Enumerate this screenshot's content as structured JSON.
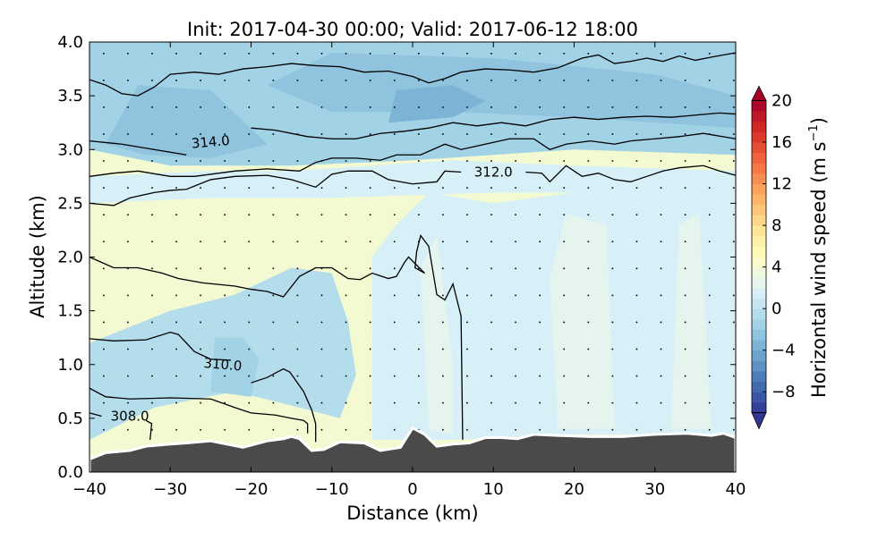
{
  "chart_data": {
    "type": "heatmap",
    "title": "Init: 2017-04-30 00:00; Valid: 2017-06-12 18:00",
    "xlabel": "Distance (km)",
    "ylabel": "Altitude (km)",
    "xlim": [
      -40,
      40
    ],
    "ylim": [
      0,
      4
    ],
    "xticks": [
      "−40",
      "−30",
      "−20",
      "−10",
      "0",
      "10",
      "20",
      "30",
      "40"
    ],
    "xtick_values": [
      -40,
      -30,
      -20,
      -10,
      0,
      10,
      20,
      30,
      40
    ],
    "yticks": [
      "0.0",
      "0.5",
      "1.0",
      "1.5",
      "2.0",
      "2.5",
      "3.0",
      "3.5",
      "4.0"
    ],
    "ytick_values": [
      0,
      0.5,
      1,
      1.5,
      2,
      2.5,
      3,
      3.5,
      4
    ],
    "colorbar": {
      "label": "Horizontal wind speed (m s",
      "label_sup": "−1",
      "label_close": ")",
      "range": [
        -10,
        20
      ],
      "step": 1,
      "extend": "both",
      "colormap": "RdYlBu_r",
      "ticks": [
        "20",
        "16",
        "12",
        "8",
        "4",
        "0",
        "−4",
        "−8"
      ],
      "tick_values": [
        20,
        16,
        12,
        8,
        4,
        0,
        -4,
        -8
      ]
    },
    "contour_labels": [
      {
        "text": "314.0",
        "x": -25,
        "y": 3.07
      },
      {
        "text": "312.0",
        "x": 10,
        "y": 2.79
      },
      {
        "text": "310.0",
        "x": -23.5,
        "y": 1.0
      },
      {
        "text": "308.0",
        "x": -35,
        "y": 0.52
      }
    ],
    "contours": [
      [
        [
          -40,
          0.55
        ],
        [
          -38.5,
          0.52
        ]
      ],
      [
        [
          -33,
          0.48
        ],
        [
          -32.3,
          0.45
        ],
        [
          -32.5,
          0.3
        ]
      ],
      [
        [
          -40,
          0.78
        ],
        [
          -38,
          0.7
        ],
        [
          -35,
          0.68
        ],
        [
          -30,
          0.69
        ],
        [
          -25,
          0.68
        ],
        [
          -22,
          0.6
        ],
        [
          -20,
          0.55
        ],
        [
          -17,
          0.53
        ],
        [
          -15,
          0.5
        ],
        [
          -13.5,
          0.48
        ],
        [
          -13,
          0.45
        ],
        [
          -13,
          0.36
        ]
      ],
      [
        [
          -40,
          1.24
        ],
        [
          -37,
          1.22
        ],
        [
          -33,
          1.23
        ],
        [
          -30,
          1.3
        ],
        [
          -29,
          1.28
        ],
        [
          -27,
          1.12
        ],
        [
          -25,
          1.05
        ],
        [
          -22.5,
          1.04
        ]
      ],
      [
        [
          -20,
          0.83
        ],
        [
          -18,
          0.88
        ],
        [
          -16,
          0.96
        ],
        [
          -15.2,
          0.93
        ],
        [
          -13.5,
          0.75
        ],
        [
          -12.5,
          0.58
        ],
        [
          -12,
          0.45
        ],
        [
          -12,
          0.28
        ]
      ],
      [
        [
          -40,
          2.0
        ],
        [
          -37,
          1.9
        ],
        [
          -34,
          1.9
        ],
        [
          -31,
          1.85
        ],
        [
          -29,
          1.8
        ],
        [
          -26,
          1.76
        ],
        [
          -22,
          1.73
        ],
        [
          -20,
          1.7
        ],
        [
          -18,
          1.68
        ],
        [
          -16,
          1.63
        ],
        [
          -14,
          1.82
        ],
        [
          -12,
          1.9
        ],
        [
          -10,
          1.9
        ],
        [
          -8,
          1.8
        ],
        [
          -6.5,
          1.79
        ],
        [
          -5,
          1.85
        ],
        [
          -3,
          1.8
        ],
        [
          -2,
          1.82
        ],
        [
          -1,
          1.95
        ],
        [
          -0.5,
          2.0
        ],
        [
          1.5,
          1.85
        ],
        [
          0.3,
          1.9
        ],
        [
          0.5,
          2.05
        ],
        [
          1,
          2.2
        ],
        [
          2,
          2.1
        ],
        [
          3,
          1.65
        ],
        [
          4,
          1.6
        ],
        [
          5,
          1.75
        ],
        [
          6,
          1.45
        ],
        [
          6.2,
          0.3
        ]
      ],
      [
        [
          -40,
          2.5
        ],
        [
          -37,
          2.48
        ],
        [
          -35,
          2.55
        ],
        [
          -32,
          2.6
        ],
        [
          -30,
          2.62
        ],
        [
          -28,
          2.63
        ],
        [
          -25,
          2.72
        ],
        [
          -22,
          2.75
        ],
        [
          -18,
          2.76
        ],
        [
          -15,
          2.72
        ],
        [
          -12,
          2.65
        ],
        [
          -10,
          2.77
        ],
        [
          -8,
          2.8
        ],
        [
          -5,
          2.8
        ],
        [
          -3,
          2.72
        ],
        [
          0,
          2.68
        ],
        [
          3,
          2.7
        ],
        [
          4,
          2.8
        ],
        [
          6,
          2.79
        ]
      ],
      [
        [
          14,
          2.79
        ],
        [
          16,
          2.78
        ],
        [
          17,
          2.7
        ],
        [
          19,
          2.85
        ],
        [
          21,
          2.75
        ],
        [
          23,
          2.78
        ],
        [
          25,
          2.72
        ],
        [
          27,
          2.7
        ],
        [
          29,
          2.75
        ],
        [
          31,
          2.8
        ],
        [
          33,
          2.83
        ],
        [
          36,
          2.85
        ],
        [
          38,
          2.8
        ],
        [
          40,
          2.76
        ]
      ],
      [
        [
          -40,
          2.75
        ],
        [
          -37,
          2.78
        ],
        [
          -34,
          2.8
        ],
        [
          -30,
          2.75
        ],
        [
          -27,
          2.75
        ],
        [
          -22,
          2.8
        ],
        [
          -18,
          2.82
        ],
        [
          -14,
          2.8
        ],
        [
          -12,
          2.88
        ],
        [
          -10,
          2.92
        ],
        [
          -7,
          2.92
        ],
        [
          -4,
          2.9
        ],
        [
          -2,
          2.95
        ],
        [
          1,
          2.95
        ],
        [
          4,
          3.05
        ],
        [
          6,
          3.0
        ],
        [
          9,
          3.05
        ],
        [
          12,
          3.1
        ],
        [
          15,
          3.1
        ],
        [
          17,
          3.0
        ],
        [
          19,
          3.05
        ],
        [
          22,
          3.08
        ],
        [
          25,
          3.05
        ],
        [
          27,
          3.08
        ],
        [
          30,
          3.1
        ],
        [
          33,
          3.12
        ],
        [
          36,
          3.15
        ],
        [
          40,
          3.1
        ]
      ],
      [
        [
          -40,
          3.08
        ],
        [
          -36,
          3.05
        ],
        [
          -32,
          3.0
        ],
        [
          -28,
          2.95
        ]
      ],
      [
        [
          -20,
          3.2
        ],
        [
          -17,
          3.18
        ],
        [
          -13,
          3.12
        ],
        [
          -10,
          3.1
        ],
        [
          -7,
          3.1
        ],
        [
          -4,
          3.15
        ],
        [
          -1,
          3.17
        ],
        [
          2,
          3.2
        ],
        [
          5,
          3.25
        ],
        [
          8,
          3.22
        ],
        [
          11,
          3.25
        ],
        [
          14,
          3.22
        ],
        [
          17,
          3.28
        ],
        [
          20,
          3.3
        ],
        [
          23,
          3.28
        ],
        [
          26,
          3.3
        ],
        [
          29,
          3.31
        ],
        [
          32,
          3.3
        ],
        [
          35,
          3.32
        ],
        [
          38,
          3.34
        ],
        [
          40,
          3.33
        ]
      ],
      [
        [
          -40,
          3.65
        ],
        [
          -38,
          3.6
        ],
        [
          -36,
          3.52
        ],
        [
          -34,
          3.5
        ],
        [
          -32,
          3.58
        ],
        [
          -30,
          3.7
        ],
        [
          -27,
          3.72
        ],
        [
          -24,
          3.7
        ],
        [
          -21,
          3.75
        ],
        [
          -18,
          3.77
        ],
        [
          -15,
          3.8
        ],
        [
          -12,
          3.78
        ],
        [
          -9,
          3.77
        ],
        [
          -6,
          3.72
        ],
        [
          -3,
          3.73
        ],
        [
          0,
          3.68
        ],
        [
          2,
          3.62
        ],
        [
          4,
          3.66
        ],
        [
          6,
          3.72
        ],
        [
          9,
          3.75
        ],
        [
          12,
          3.74
        ],
        [
          15,
          3.72
        ],
        [
          18,
          3.76
        ],
        [
          21,
          3.85
        ],
        [
          23,
          3.88
        ],
        [
          25,
          3.8
        ],
        [
          27,
          3.82
        ],
        [
          29,
          3.85
        ],
        [
          31,
          3.82
        ],
        [
          33,
          3.87
        ],
        [
          35,
          3.83
        ],
        [
          37,
          3.86
        ],
        [
          40,
          3.9
        ]
      ]
    ],
    "terrain": [
      [
        -40,
        0.12
      ],
      [
        -38,
        0.18
      ],
      [
        -35,
        0.2
      ],
      [
        -33,
        0.24
      ],
      [
        -30,
        0.26
      ],
      [
        -28,
        0.27
      ],
      [
        -25,
        0.29
      ],
      [
        -23,
        0.26
      ],
      [
        -21,
        0.23
      ],
      [
        -18,
        0.29
      ],
      [
        -16,
        0.31
      ],
      [
        -15,
        0.33
      ],
      [
        -14,
        0.31
      ],
      [
        -12.5,
        0.2
      ],
      [
        -11,
        0.21
      ],
      [
        -9,
        0.28
      ],
      [
        -6,
        0.27
      ],
      [
        -4,
        0.2
      ],
      [
        -1.5,
        0.23
      ],
      [
        0,
        0.41
      ],
      [
        1.5,
        0.35
      ],
      [
        3,
        0.24
      ],
      [
        5,
        0.26
      ],
      [
        7,
        0.27
      ],
      [
        9,
        0.32
      ],
      [
        11,
        0.32
      ],
      [
        13,
        0.31
      ],
      [
        15,
        0.35
      ],
      [
        18,
        0.34
      ],
      [
        22,
        0.33
      ],
      [
        26,
        0.33
      ],
      [
        30,
        0.35
      ],
      [
        34,
        0.36
      ],
      [
        37,
        0.34
      ],
      [
        38.5,
        0.36
      ],
      [
        40,
        0.32
      ]
    ],
    "wind_patches": [
      {
        "value": -2,
        "poly": [
          [
            -40,
            3.0
          ],
          [
            -40,
            4.0
          ],
          [
            40,
            4.0
          ],
          [
            40,
            2.95
          ],
          [
            20,
            3.0
          ],
          [
            10,
            2.95
          ],
          [
            0,
            2.9
          ],
          [
            -15,
            2.85
          ],
          [
            -30,
            2.85
          ]
        ]
      },
      {
        "value": -3,
        "poly": [
          [
            -38,
            3.05
          ],
          [
            -34,
            3.6
          ],
          [
            -25,
            3.55
          ],
          [
            -18,
            3.05
          ],
          [
            -25,
            2.92
          ],
          [
            -33,
            2.95
          ]
        ]
      },
      {
        "value": -3,
        "poly": [
          [
            -18,
            3.6
          ],
          [
            -10,
            3.9
          ],
          [
            10,
            3.85
          ],
          [
            30,
            3.7
          ],
          [
            40,
            3.5
          ],
          [
            40,
            3.2
          ],
          [
            20,
            3.3
          ],
          [
            5,
            3.35
          ],
          [
            -10,
            3.35
          ]
        ]
      },
      {
        "value": -4,
        "poly": [
          [
            -3,
            3.25
          ],
          [
            -2,
            3.55
          ],
          [
            5,
            3.6
          ],
          [
            9,
            3.45
          ],
          [
            5,
            3.3
          ]
        ]
      },
      {
        "value": -1,
        "poly": [
          [
            -40,
            0.3
          ],
          [
            -40,
            1.2
          ],
          [
            -30,
            1.5
          ],
          [
            -22,
            1.65
          ],
          [
            -15,
            1.9
          ],
          [
            -10,
            1.85
          ],
          [
            -8,
            1.4
          ],
          [
            -7,
            0.9
          ],
          [
            -9,
            0.5
          ],
          [
            -14,
            0.6
          ],
          [
            -22,
            0.75
          ],
          [
            -32,
            0.6
          ]
        ]
      },
      {
        "value": -2,
        "poly": [
          [
            -25,
            0.75
          ],
          [
            -24.5,
            1.25
          ],
          [
            -21,
            1.25
          ],
          [
            -19,
            1.05
          ],
          [
            -20,
            0.7
          ]
        ]
      },
      {
        "value": 1,
        "poly": [
          [
            -5,
            0.3
          ],
          [
            -5,
            2.0
          ],
          [
            -2,
            2.3
          ],
          [
            2,
            2.6
          ],
          [
            10,
            2.5
          ],
          [
            20,
            2.6
          ],
          [
            40,
            2.6
          ],
          [
            40,
            0.35
          ],
          [
            20,
            0.35
          ],
          [
            5,
            0.3
          ]
        ]
      },
      {
        "value": 2,
        "poly": [
          [
            18,
            0.4
          ],
          [
            17,
            1.8
          ],
          [
            19,
            2.4
          ],
          [
            24,
            2.3
          ],
          [
            25,
            0.4
          ]
        ]
      },
      {
        "value": 2,
        "poly": [
          [
            32,
            0.4
          ],
          [
            33,
            2.3
          ],
          [
            35.5,
            2.4
          ],
          [
            37,
            0.4
          ]
        ]
      },
      {
        "value": 2,
        "poly": [
          [
            2,
            0.4
          ],
          [
            1,
            1.9
          ],
          [
            3,
            2.2
          ],
          [
            5,
            1.0
          ],
          [
            5,
            0.35
          ]
        ]
      },
      {
        "value": 1,
        "poly": [
          [
            -40,
            2.5
          ],
          [
            -40,
            2.75
          ],
          [
            -25,
            2.8
          ],
          [
            -15,
            2.8
          ],
          [
            -5,
            2.85
          ],
          [
            5,
            2.9
          ],
          [
            20,
            2.85
          ],
          [
            40,
            2.8
          ],
          [
            40,
            2.6
          ],
          [
            10,
            2.6
          ],
          [
            -10,
            2.55
          ],
          [
            -25,
            2.55
          ]
        ]
      }
    ]
  }
}
